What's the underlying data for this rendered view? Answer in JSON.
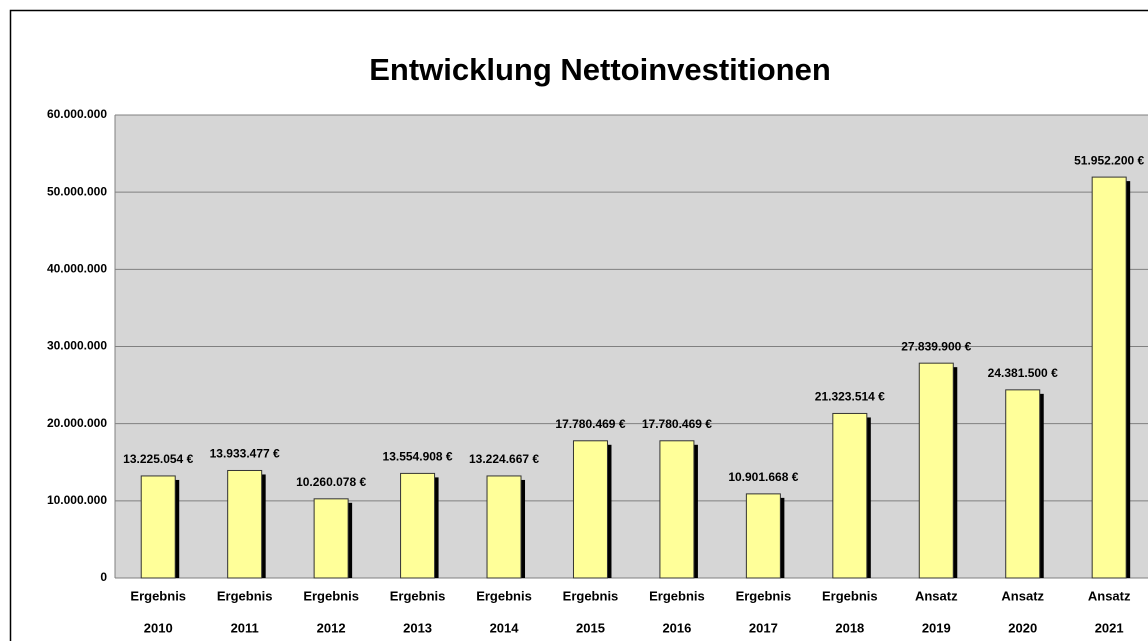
{
  "chart_data": {
    "type": "bar",
    "title": "Entwicklung Nettoinvestitionen",
    "categories": [
      [
        "Ergebnis",
        "2010"
      ],
      [
        "Ergebnis",
        "2011"
      ],
      [
        "Ergebnis",
        "2012"
      ],
      [
        "Ergebnis",
        "2013"
      ],
      [
        "Ergebnis",
        "2014"
      ],
      [
        "Ergebnis",
        "2015"
      ],
      [
        "Ergebnis",
        "2016"
      ],
      [
        "Ergebnis",
        "2017"
      ],
      [
        "Ergebnis",
        "2018"
      ],
      [
        "Ansatz",
        "2019"
      ],
      [
        "Ansatz",
        "2020"
      ],
      [
        "Ansatz",
        "2021"
      ]
    ],
    "values": [
      13225054,
      13933477,
      10260078,
      13554908,
      13224667,
      17780469,
      17780469,
      10901668,
      21323514,
      27839900,
      24381500,
      51952200
    ],
    "value_labels": [
      "13.225.054 €",
      "13.933.477 €",
      "10.260.078 €",
      "13.554.908 €",
      "13.224.667 €",
      "17.780.469 €",
      "17.780.469 €",
      "10.901.668 €",
      "21.323.514 €",
      "27.839.900 €",
      "24.381.500 €",
      "51.952.200 €"
    ],
    "color": "#ffff99",
    "ylim": [
      0,
      60000000
    ],
    "yticks": [
      0,
      {
        "value": 10000000,
        "label": "10.000.000"
      },
      {
        "value": 20000000,
        "label": "20.000.000"
      },
      {
        "value": 30000000,
        "label": "30.000.000"
      },
      {
        "value": 40000000,
        "label": "40.000.000"
      },
      {
        "value": 50000000,
        "label": "50.000.000"
      },
      {
        "value": 60000000,
        "label": "60.000.000"
      }
    ],
    "grid": true
  }
}
